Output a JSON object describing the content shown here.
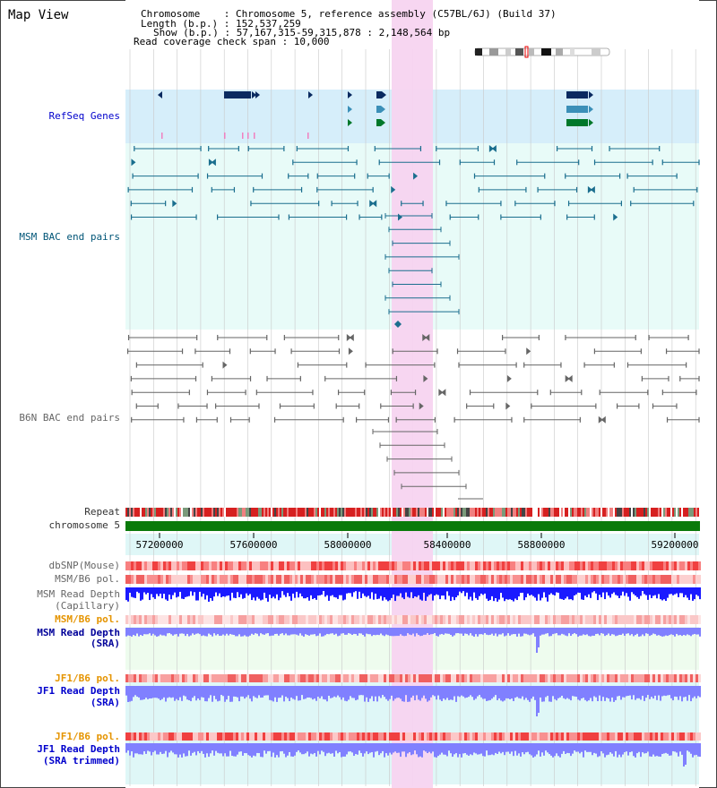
{
  "view_title": "Map View",
  "info": {
    "chromosome": "Chromosome    : Chromosome 5, reference assembly (C57BL/6J) (Build 37)",
    "length": "Length (b.p.) : 152,537,259",
    "show": "Show (b.p.) : 57,167,315-59,315,878 : 2,148,564 bp",
    "coverage": "Read coverage check span : 10,000"
  },
  "tracks": {
    "refseq": "RefSeq Genes",
    "msm_bac": "MSM BAC end pairs",
    "b6n_bac": "B6N BAC end pairs",
    "repeat": "Repeat",
    "chromosome": "chromosome 5",
    "dbsnp": "dbSNP(Mouse)",
    "msm_b6_pol1": "MSM/B6 pol.",
    "msm_read_depth_cap": "MSM Read Depth",
    "msm_read_depth_cap_sub": "(Capillary)",
    "msm_b6_pol2": "MSM/B6 pol.",
    "msm_read_depth_sra": "MSM Read Depth",
    "msm_read_depth_sra_sub": "(SRA)",
    "jf1_b6_pol1": "JF1/B6 pol.",
    "jf1_read_depth_sra": "JF1 Read Depth",
    "jf1_read_depth_sra_sub": "(SRA)",
    "jf1_b6_pol2": "JF1/B6 pol.",
    "jf1_read_depth_trim": "JF1 Read Depth",
    "jf1_read_depth_trim_sub": "(SRA trimmed)"
  },
  "axis_ticks": [
    "57200000",
    "57600000",
    "58000000",
    "58400000",
    "58800000",
    "59200000"
  ],
  "colors": {
    "highlight": "#f7d4f0",
    "refseq_bg": "#d6eefa",
    "msm_bg": "#e8fbf8",
    "depth_bg": "#dff7f7",
    "msm_sra_bg": "#eefcee",
    "gene_dark": "#0a2a60",
    "gene_mid": "#3b8fb8",
    "gene_green": "#00782a",
    "bac_teal": "#1a6e8e",
    "bac_grey": "#666666",
    "chromosome_green": "#0a7a0a",
    "depth_blue": "#1a1aff",
    "depth_lightblue": "#8080ff"
  }
}
